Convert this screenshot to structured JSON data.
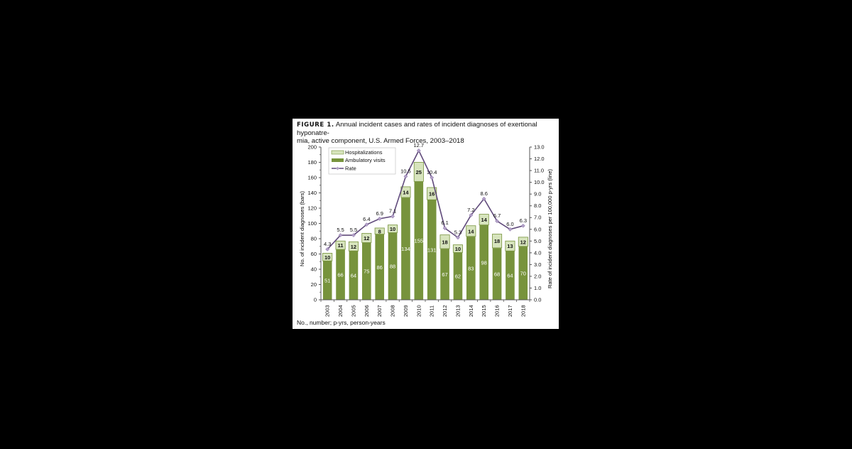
{
  "figure": {
    "label": "FIGURE 1.",
    "title": "Annual incident cases and rates of incident diagnoses of exertional hyponatre-mia, active component, U.S. Armed Forces, 2003–2018",
    "title_line1": "Annual incident cases and rates of incident diagnoses of exertional hyponatre-",
    "title_line2": "mia, active component, U.S. Armed Forces, 2003–2018",
    "footnote": "No., number; p-yrs, person-years"
  },
  "colors": {
    "ambulatory": "#77933C",
    "hospitalization": "#D7E4BD",
    "bar_edge": "#ffffff",
    "rate_line": "#604A7B",
    "rate_marker": "#B3A2C7",
    "background": "#000000",
    "panel": "#ffffff"
  },
  "chart_data": {
    "type": "bar",
    "subtype": "stacked bar with line on secondary axis",
    "title": "Annual incident cases and rates of incident diagnoses of exertional hyponatremia, active component, U.S. Armed Forces, 2003–2018",
    "categories": [
      "2003",
      "2004",
      "2005",
      "2006",
      "2007",
      "2008",
      "2009",
      "2010",
      "2011",
      "2012",
      "2013",
      "2014",
      "2015",
      "2016",
      "2017",
      "2018"
    ],
    "series": [
      {
        "name": "Ambulatory visits",
        "type": "bar",
        "axis": "left",
        "values": [
          51,
          66,
          64,
          75,
          86,
          88,
          134,
          155,
          131,
          67,
          62,
          83,
          98,
          68,
          64,
          70
        ]
      },
      {
        "name": "Hospitalizations",
        "type": "bar",
        "axis": "left",
        "values": [
          10,
          11,
          12,
          12,
          8,
          10,
          14,
          25,
          16,
          18,
          10,
          14,
          14,
          18,
          13,
          12
        ]
      },
      {
        "name": "Rate",
        "type": "line",
        "axis": "right",
        "values": [
          4.3,
          5.5,
          5.5,
          6.4,
          6.9,
          7.1,
          10.5,
          12.7,
          10.4,
          6.1,
          5.3,
          7.2,
          8.6,
          6.7,
          6.0,
          6.3
        ]
      }
    ],
    "xlabel": "",
    "ylabel": "No. of incident diagnoses (bars)",
    "y2label": "Rate of incident diagnoses per 100,000 p-yrs (line)",
    "ylim": [
      0,
      200
    ],
    "y2lim": [
      0,
      13
    ],
    "yticks": [
      0,
      20,
      40,
      60,
      80,
      100,
      120,
      140,
      160,
      180,
      200
    ],
    "y2ticks": [
      "0.0",
      "1.0",
      "2.0",
      "3.0",
      "4.0",
      "5.0",
      "6.0",
      "7.0",
      "8.0",
      "9.0",
      "10.0",
      "11.0",
      "12.0",
      "13.0"
    ],
    "legend": [
      "Hospitalizations",
      "Ambulatory visits",
      "Rate"
    ],
    "legend_position": "upper left",
    "grid": false
  }
}
